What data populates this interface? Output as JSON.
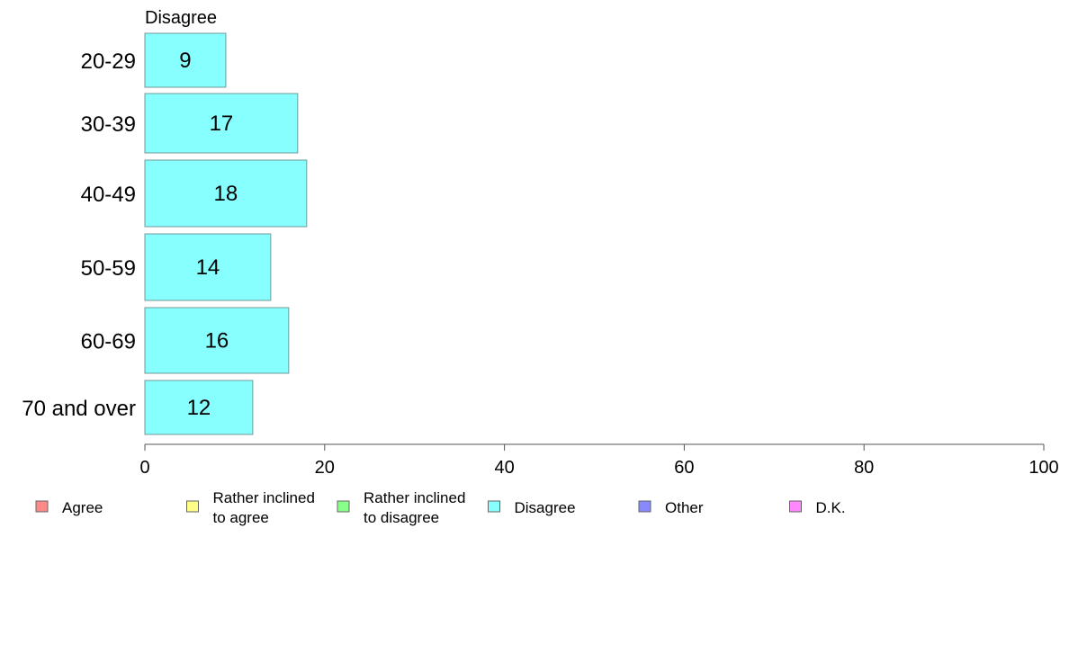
{
  "chart_data": {
    "type": "bar",
    "orientation": "horizontal",
    "title": "",
    "xlabel": "",
    "ylabel": "",
    "xlim": [
      0,
      100
    ],
    "x_ticks": [
      0,
      20,
      40,
      60,
      80,
      100
    ],
    "grid": false,
    "legend_position": "bottom",
    "categories": [
      "20-29",
      "30-39",
      "40-49",
      "50-59",
      "60-69",
      "70 and over"
    ],
    "series": [
      {
        "name": "Disagree",
        "color": "#88ffff",
        "values": [
          9,
          17,
          18,
          14,
          16,
          12
        ]
      }
    ],
    "legend": [
      {
        "label": "Agree",
        "color": "#ff8888"
      },
      {
        "label": "Rather inclined to agree",
        "lines": [
          "Rather inclined",
          "to agree"
        ],
        "color": "#ffff88"
      },
      {
        "label": "Rather inclined to disagree",
        "lines": [
          "Rather inclined",
          "to disagree"
        ],
        "color": "#88ff88"
      },
      {
        "label": "Disagree",
        "color": "#88ffff"
      },
      {
        "label": "Other",
        "color": "#8888ff"
      },
      {
        "label": "D.K.",
        "color": "#ff88ff"
      }
    ]
  }
}
